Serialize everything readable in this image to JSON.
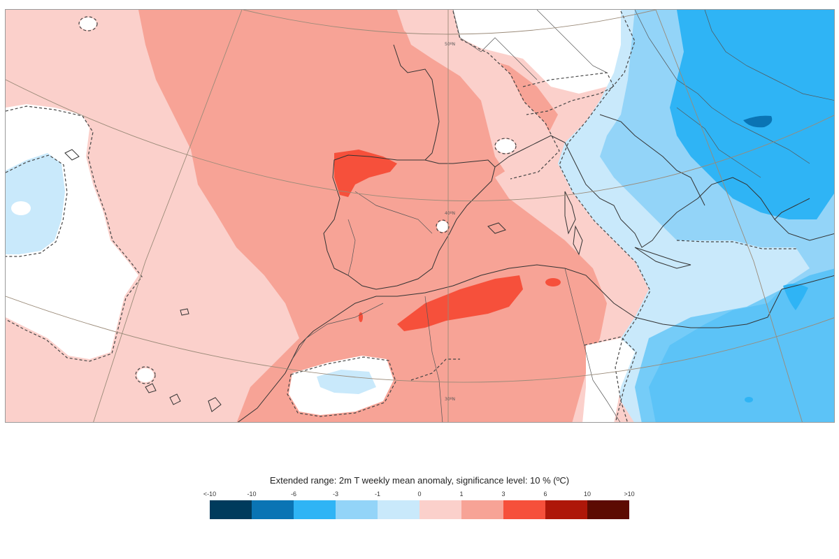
{
  "legend": {
    "title": "Extended range: 2m T weekly mean anomaly, significance level: 10 % (ºC)",
    "ticks": [
      "<-10",
      "-10",
      "-6",
      "-3",
      "-1",
      "0",
      "1",
      "3",
      "6",
      "10",
      ">10"
    ],
    "colors": [
      "#003b5c",
      "#0a74b4",
      "#2fb4f5",
      "#93d4f8",
      "#c9e9fb",
      "#fbd0cb",
      "#f7a396",
      "#f6503b",
      "#ae1709",
      "#5c0b02"
    ]
  },
  "map": {
    "latitude_labels": [
      "50ºN",
      "40ºN",
      "30ºN"
    ]
  }
}
